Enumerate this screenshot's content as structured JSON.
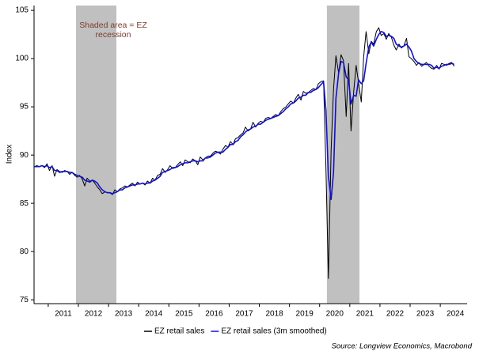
{
  "chart_data": {
    "type": "line",
    "ylabel": "Index",
    "annotation": [
      "Shaded area = EZ",
      "recession"
    ],
    "source": "Source: Longview Economics, Macrobond",
    "xlim": [
      2010.53,
      2024.89
    ],
    "ylim": [
      74.6,
      105.5
    ],
    "xticks": [
      2011,
      2012,
      2013,
      2014,
      2015,
      2016,
      2017,
      2018,
      2019,
      2020,
      2021,
      2022,
      2023,
      2024
    ],
    "yticks": [
      75,
      80,
      85,
      90,
      95,
      100,
      105
    ],
    "grid": false,
    "legend": "bottom",
    "recession_color": "#c0c0c0",
    "recessions": [
      [
        2011.92,
        2013.26
      ],
      [
        2020.24,
        2021.32
      ]
    ],
    "x": [
      2010.54,
      2010.63,
      2010.71,
      2010.79,
      2010.88,
      2010.96,
      2011.04,
      2011.13,
      2011.21,
      2011.29,
      2011.38,
      2011.46,
      2011.54,
      2011.63,
      2011.71,
      2011.79,
      2011.88,
      2011.96,
      2012.04,
      2012.13,
      2012.21,
      2012.29,
      2012.38,
      2012.46,
      2012.54,
      2012.63,
      2012.71,
      2012.79,
      2012.88,
      2012.96,
      2013.04,
      2013.13,
      2013.21,
      2013.29,
      2013.38,
      2013.46,
      2013.54,
      2013.63,
      2013.71,
      2013.79,
      2013.88,
      2013.96,
      2014.04,
      2014.13,
      2014.21,
      2014.29,
      2014.38,
      2014.46,
      2014.54,
      2014.63,
      2014.71,
      2014.79,
      2014.88,
      2014.96,
      2015.04,
      2015.13,
      2015.21,
      2015.29,
      2015.38,
      2015.46,
      2015.54,
      2015.63,
      2015.71,
      2015.79,
      2015.88,
      2015.96,
      2016.04,
      2016.13,
      2016.21,
      2016.29,
      2016.38,
      2016.46,
      2016.54,
      2016.63,
      2016.71,
      2016.79,
      2016.88,
      2016.96,
      2017.04,
      2017.13,
      2017.21,
      2017.29,
      2017.38,
      2017.46,
      2017.54,
      2017.63,
      2017.71,
      2017.79,
      2017.88,
      2017.96,
      2018.04,
      2018.13,
      2018.21,
      2018.29,
      2018.38,
      2018.46,
      2018.54,
      2018.63,
      2018.71,
      2018.79,
      2018.88,
      2018.96,
      2019.04,
      2019.13,
      2019.21,
      2019.29,
      2019.38,
      2019.46,
      2019.54,
      2019.63,
      2019.71,
      2019.79,
      2019.88,
      2019.96,
      2020.04,
      2020.13,
      2020.21,
      2020.29,
      2020.38,
      2020.46,
      2020.54,
      2020.63,
      2020.71,
      2020.79,
      2020.88,
      2020.96,
      2021.04,
      2021.13,
      2021.21,
      2021.29,
      2021.38,
      2021.46,
      2021.54,
      2021.63,
      2021.71,
      2021.79,
      2021.88,
      2021.96,
      2022.04,
      2022.13,
      2022.21,
      2022.29,
      2022.38,
      2022.46,
      2022.54,
      2022.63,
      2022.71,
      2022.79,
      2022.88,
      2022.96,
      2023.04,
      2023.13,
      2023.21,
      2023.29,
      2023.38,
      2023.46,
      2023.54,
      2023.63,
      2023.71,
      2023.79,
      2023.88,
      2023.96,
      2024.04,
      2024.13,
      2024.21,
      2024.29,
      2024.38,
      2024.46
    ],
    "series": [
      {
        "name": "EZ retail sales",
        "color": "#000000",
        "width": 1,
        "values": [
          88.8,
          88.9,
          88.8,
          88.9,
          88.7,
          89.1,
          88.4,
          88.9,
          87.8,
          88.5,
          88.3,
          88.2,
          88.4,
          88.3,
          88.0,
          88.2,
          87.9,
          87.7,
          87.9,
          87.5,
          86.8,
          87.6,
          87.3,
          87.4,
          87.1,
          86.7,
          86.4,
          86.0,
          86.2,
          86.1,
          86.1,
          85.9,
          86.4,
          86.2,
          86.5,
          86.6,
          86.8,
          86.7,
          86.9,
          87.1,
          86.8,
          87.2,
          87.0,
          87.1,
          86.9,
          87.3,
          87.1,
          87.6,
          87.4,
          87.9,
          88.0,
          88.6,
          88.2,
          88.5,
          88.9,
          88.6,
          88.7,
          89.0,
          89.3,
          88.9,
          89.5,
          89.3,
          89.2,
          89.6,
          89.4,
          89.0,
          89.8,
          89.5,
          89.7,
          89.9,
          89.9,
          90.2,
          90.4,
          90.3,
          90.1,
          90.6,
          91.0,
          90.8,
          91.4,
          91.1,
          91.7,
          91.8,
          92.1,
          92.3,
          92.9,
          92.5,
          92.7,
          93.4,
          92.9,
          93.3,
          93.5,
          93.4,
          93.8,
          93.9,
          93.8,
          94.0,
          94.2,
          94.1,
          94.5,
          94.8,
          95.0,
          95.3,
          95.6,
          95.4,
          95.9,
          96.3,
          95.7,
          96.6,
          96.4,
          96.5,
          96.7,
          96.9,
          96.8,
          97.4,
          97.6,
          97.7,
          88.5,
          77.2,
          90.5,
          96.8,
          100.3,
          98.5,
          100.4,
          99.8,
          94.0,
          99.5,
          92.5,
          96.6,
          99.3,
          97.5,
          95.5,
          100.2,
          102.8,
          100.5,
          101.8,
          101.5,
          102.8,
          103.2,
          102.4,
          102.6,
          102.0,
          102.6,
          102.2,
          101.4,
          100.9,
          101.5,
          101.1,
          101.3,
          102.1,
          100.2,
          100.0,
          99.7,
          99.3,
          99.6,
          99.2,
          99.4,
          99.6,
          99.2,
          99.0,
          98.9,
          99.3,
          98.9,
          99.5,
          99.4,
          99.3,
          99.5,
          99.6,
          99.2
        ]
      },
      {
        "name": "EZ retail sales (3m smoothed)",
        "color": "#1010d0",
        "width": 1.6,
        "values": [
          88.8,
          88.8,
          88.8,
          88.9,
          88.8,
          88.9,
          88.7,
          88.8,
          88.4,
          88.4,
          88.2,
          88.3,
          88.3,
          88.3,
          88.2,
          88.2,
          88.0,
          87.9,
          87.8,
          87.7,
          87.4,
          87.3,
          87.2,
          87.4,
          87.3,
          87.1,
          86.7,
          86.4,
          86.2,
          86.1,
          86.1,
          86.0,
          86.1,
          86.2,
          86.4,
          86.4,
          86.6,
          86.7,
          86.8,
          86.9,
          86.9,
          87.0,
          87.0,
          87.1,
          87.0,
          87.1,
          87.1,
          87.3,
          87.4,
          87.6,
          87.8,
          88.2,
          88.3,
          88.4,
          88.5,
          88.7,
          88.7,
          88.8,
          89.0,
          89.1,
          89.2,
          89.2,
          89.3,
          89.4,
          89.4,
          89.3,
          89.4,
          89.4,
          89.7,
          89.7,
          89.8,
          90.0,
          90.2,
          90.3,
          90.3,
          90.3,
          90.6,
          90.8,
          91.1,
          91.1,
          91.4,
          91.5,
          91.9,
          92.1,
          92.4,
          92.6,
          92.7,
          92.9,
          93.0,
          93.2,
          93.2,
          93.4,
          93.6,
          93.7,
          93.8,
          93.9,
          94.0,
          94.1,
          94.3,
          94.5,
          94.8,
          95.0,
          95.3,
          95.4,
          95.6,
          95.9,
          96.0,
          96.2,
          96.2,
          96.5,
          96.5,
          96.7,
          96.8,
          97.0,
          97.3,
          97.6,
          94.6,
          87.8,
          85.4,
          88.2,
          95.9,
          98.5,
          99.7,
          99.6,
          98.1,
          97.8,
          95.3,
          96.2,
          96.1,
          97.8,
          97.4,
          97.7,
          99.5,
          101.2,
          101.7,
          101.3,
          102.0,
          102.5,
          102.8,
          102.7,
          102.3,
          102.4,
          102.3,
          102.1,
          101.5,
          101.3,
          101.2,
          101.3,
          101.5,
          101.2,
          100.8,
          100.0,
          99.7,
          99.5,
          99.4,
          99.4,
          99.4,
          99.4,
          99.3,
          99.0,
          99.1,
          99.0,
          99.2,
          99.3,
          99.4,
          99.4,
          99.5,
          99.4
        ]
      }
    ]
  }
}
